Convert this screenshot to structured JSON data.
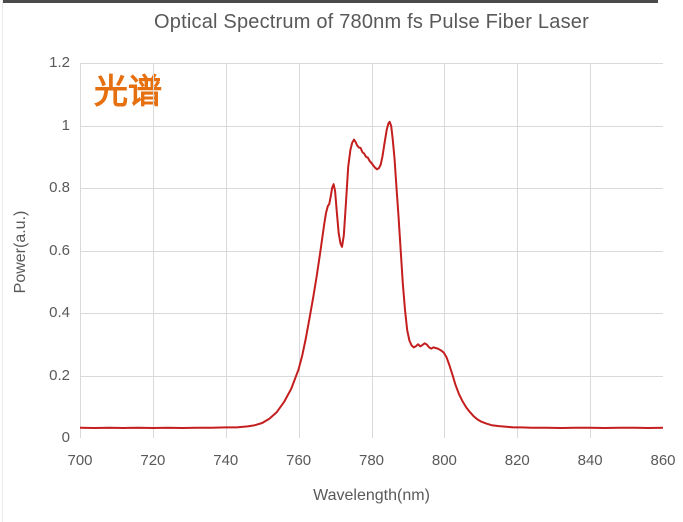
{
  "colors": {
    "text": "#595959",
    "grid": "#D9D9D9",
    "axis": "#BFBFBF",
    "top_border": "#4B4B4B",
    "left_border": "#E9E9E9",
    "background": "#FFFFFF"
  },
  "chart_data": {
    "type": "line",
    "title": "Optical Spectrum of 780nm fs Pulse Fiber Laser",
    "xlabel": "Wavelength(nm)",
    "ylabel": "Power(a.u.)",
    "xlim": [
      700,
      860
    ],
    "ylim": [
      0,
      1.2
    ],
    "x_ticks": [
      700,
      720,
      740,
      760,
      780,
      800,
      820,
      840,
      860
    ],
    "y_ticks": [
      0,
      0.2,
      0.4,
      0.6,
      0.8,
      1,
      1.2
    ],
    "y_tick_labels": [
      "0",
      "0.2",
      "0.4",
      "0.6",
      "0.8",
      "1",
      "1.2"
    ],
    "grid": true,
    "legend_position": "none",
    "annotation": {
      "text": "光谱",
      "color": "#E6700F"
    },
    "series": [
      {
        "name": "optical-spectrum",
        "color": "#C41E1E",
        "points": [
          [
            700,
            0.033
          ],
          [
            704,
            0.032
          ],
          [
            708,
            0.033
          ],
          [
            712,
            0.032
          ],
          [
            716,
            0.033
          ],
          [
            720,
            0.032
          ],
          [
            724,
            0.033
          ],
          [
            728,
            0.032
          ],
          [
            732,
            0.033
          ],
          [
            736,
            0.033
          ],
          [
            740,
            0.034
          ],
          [
            743,
            0.034
          ],
          [
            746,
            0.037
          ],
          [
            748,
            0.041
          ],
          [
            750,
            0.048
          ],
          [
            752,
            0.062
          ],
          [
            754,
            0.083
          ],
          [
            756,
            0.115
          ],
          [
            758,
            0.158
          ],
          [
            760,
            0.22
          ],
          [
            761,
            0.265
          ],
          [
            762,
            0.32
          ],
          [
            763,
            0.385
          ],
          [
            764,
            0.45
          ],
          [
            765,
            0.52
          ],
          [
            766,
            0.6
          ],
          [
            767,
            0.682
          ],
          [
            767.5,
            0.72
          ],
          [
            768,
            0.742
          ],
          [
            768.4,
            0.748
          ],
          [
            768.8,
            0.772
          ],
          [
            769.2,
            0.8
          ],
          [
            769.6,
            0.812
          ],
          [
            770,
            0.79
          ],
          [
            770.5,
            0.72
          ],
          [
            771,
            0.655
          ],
          [
            771.5,
            0.622
          ],
          [
            771.9,
            0.612
          ],
          [
            772.4,
            0.648
          ],
          [
            773,
            0.755
          ],
          [
            773.6,
            0.868
          ],
          [
            774.2,
            0.922
          ],
          [
            774.7,
            0.945
          ],
          [
            775.2,
            0.955
          ],
          [
            775.6,
            0.948
          ],
          [
            776,
            0.938
          ],
          [
            776.5,
            0.93
          ],
          [
            777,
            0.928
          ],
          [
            777.5,
            0.915
          ],
          [
            778,
            0.91
          ],
          [
            778.5,
            0.9
          ],
          [
            779,
            0.897
          ],
          [
            779.5,
            0.886
          ],
          [
            780,
            0.88
          ],
          [
            780.5,
            0.872
          ],
          [
            781,
            0.865
          ],
          [
            781.5,
            0.86
          ],
          [
            782,
            0.863
          ],
          [
            782.5,
            0.874
          ],
          [
            783,
            0.9
          ],
          [
            783.6,
            0.945
          ],
          [
            784.2,
            0.988
          ],
          [
            784.7,
            1.008
          ],
          [
            785,
            1.012
          ],
          [
            785.4,
            0.998
          ],
          [
            785.8,
            0.96
          ],
          [
            786.3,
            0.895
          ],
          [
            786.8,
            0.81
          ],
          [
            787.4,
            0.71
          ],
          [
            788,
            0.6
          ],
          [
            788.6,
            0.495
          ],
          [
            789.2,
            0.41
          ],
          [
            789.8,
            0.345
          ],
          [
            790.4,
            0.312
          ],
          [
            791,
            0.296
          ],
          [
            791.6,
            0.29
          ],
          [
            792.2,
            0.294
          ],
          [
            792.8,
            0.3
          ],
          [
            793.4,
            0.293
          ],
          [
            794,
            0.298
          ],
          [
            794.6,
            0.303
          ],
          [
            795.2,
            0.299
          ],
          [
            795.8,
            0.29
          ],
          [
            796.4,
            0.286
          ],
          [
            797,
            0.29
          ],
          [
            797.6,
            0.288
          ],
          [
            798.2,
            0.286
          ],
          [
            799,
            0.281
          ],
          [
            799.8,
            0.274
          ],
          [
            800.6,
            0.258
          ],
          [
            801.4,
            0.232
          ],
          [
            802.2,
            0.203
          ],
          [
            803,
            0.172
          ],
          [
            804,
            0.141
          ],
          [
            805,
            0.117
          ],
          [
            806,
            0.098
          ],
          [
            807,
            0.083
          ],
          [
            808,
            0.07
          ],
          [
            809,
            0.06
          ],
          [
            810,
            0.053
          ],
          [
            811.5,
            0.046
          ],
          [
            813,
            0.041
          ],
          [
            815,
            0.038
          ],
          [
            817,
            0.036
          ],
          [
            819,
            0.034
          ],
          [
            821,
            0.034
          ],
          [
            824,
            0.033
          ],
          [
            828,
            0.033
          ],
          [
            832,
            0.032
          ],
          [
            836,
            0.033
          ],
          [
            840,
            0.033
          ],
          [
            844,
            0.032
          ],
          [
            848,
            0.033
          ],
          [
            852,
            0.033
          ],
          [
            856,
            0.032
          ],
          [
            860,
            0.033
          ]
        ]
      }
    ]
  }
}
